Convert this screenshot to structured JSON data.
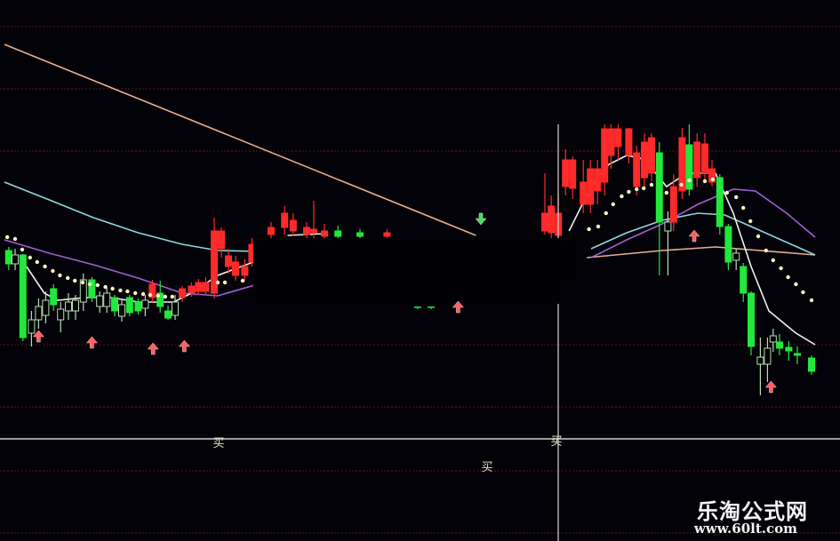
{
  "chart_data": {
    "type": "candlestick",
    "title": "",
    "xlabel": "",
    "ylabel": "",
    "grid": true,
    "colors": {
      "up": "#ff2a2a",
      "down": "#22e83c",
      "neutral": "#b8dcb8",
      "ma_long": "#e8b090",
      "ma_cyan": "#8fd8e0",
      "ma_purple": "#a060d0",
      "ma_white": "#f0f0f0",
      "dots": "#fff4c0",
      "arrow_buy": "#ff6060",
      "arrow_green": "#40e060"
    },
    "candle_fields": [
      "bar",
      "open",
      "close",
      "high",
      "low",
      "kind"
    ],
    "candles": [
      [
        0.6,
        109,
        101.5,
        111,
        98,
        "g"
      ],
      [
        1.5,
        101.5,
        106.5,
        110,
        98,
        "h"
      ],
      [
        2.6,
        106.5,
        60,
        107,
        58,
        "g"
      ],
      [
        3.8,
        62.5,
        70,
        75,
        55,
        "h"
      ],
      [
        4.8,
        70,
        77.5,
        82,
        65,
        "h"
      ],
      [
        5.8,
        72.5,
        81,
        86,
        68,
        "h"
      ],
      [
        6.9,
        87.5,
        78.5,
        90,
        75,
        "g"
      ],
      [
        7.9,
        70,
        76,
        80,
        63,
        "h"
      ],
      [
        9,
        75,
        80,
        85,
        70,
        "h"
      ],
      [
        10,
        75,
        81,
        84,
        70,
        "h"
      ],
      [
        11.1,
        80,
        92.5,
        96,
        75,
        "h"
      ],
      [
        12.3,
        92.5,
        82.5,
        94,
        80,
        "g"
      ],
      [
        13.4,
        77.5,
        83.5,
        86,
        74,
        "h"
      ],
      [
        14.4,
        77.5,
        85,
        88,
        74,
        "h"
      ],
      [
        15.5,
        82.5,
        75,
        84,
        72,
        "g"
      ],
      [
        16.5,
        72,
        78.5,
        82,
        69,
        "h"
      ],
      [
        17.6,
        82.5,
        74,
        84,
        72,
        "g"
      ],
      [
        18.8,
        80,
        75,
        82,
        73,
        "g"
      ],
      [
        19.8,
        76.5,
        81,
        84,
        72,
        "h"
      ],
      [
        20.8,
        82.5,
        90,
        92.5,
        80,
        "r"
      ],
      [
        21.9,
        85,
        77.5,
        92,
        74,
        "g"
      ],
      [
        23,
        75,
        71,
        78,
        70,
        "g"
      ],
      [
        24,
        72.5,
        80,
        84,
        70,
        "h"
      ],
      [
        25,
        82.5,
        87.5,
        89,
        80,
        "r"
      ],
      [
        26.3,
        85,
        89,
        91,
        83,
        "r"
      ],
      [
        27.3,
        86,
        91,
        93,
        84,
        "r"
      ],
      [
        28.3,
        86,
        91,
        94,
        84,
        "r"
      ],
      [
        29.5,
        85,
        120,
        127.5,
        82,
        "r"
      ],
      [
        30.5,
        110,
        120,
        122,
        105,
        "r"
      ],
      [
        31.5,
        100,
        106,
        110,
        96,
        "r"
      ],
      [
        32.5,
        95,
        102.5,
        106,
        92,
        "r"
      ],
      [
        33.8,
        95,
        100,
        104,
        92,
        "r"
      ],
      [
        34.8,
        102.5,
        112.5,
        116,
        100,
        "r"
      ],
      [
        37.5,
        118,
        122,
        125,
        116,
        "r"
      ],
      [
        39.4,
        122,
        130,
        134,
        118,
        "r"
      ],
      [
        40.6,
        120,
        126,
        130,
        117,
        "r"
      ],
      [
        42.5,
        118,
        122,
        125,
        116,
        "r"
      ],
      [
        43.5,
        119,
        121,
        137,
        116,
        "r"
      ],
      [
        45,
        117,
        120,
        124,
        116,
        "r"
      ],
      [
        46.9,
        120,
        117,
        123,
        116,
        "g"
      ],
      [
        50,
        119,
        117,
        121,
        116,
        "g"
      ],
      [
        53.8,
        117,
        119,
        121,
        116,
        "r"
      ],
      [
        58.1,
        79,
        77,
        80,
        76,
        "g"
      ],
      [
        60,
        79,
        77,
        80,
        76,
        "g"
      ],
      [
        76,
        120,
        130,
        152.5,
        118,
        "r"
      ],
      [
        76.9,
        119,
        134,
        140,
        116,
        "r"
      ],
      [
        77.9,
        117.5,
        130,
        140,
        115,
        "r"
      ],
      [
        78.9,
        145,
        160,
        166,
        140,
        "r"
      ],
      [
        79.9,
        144,
        160,
        162,
        138,
        "r"
      ],
      [
        81.4,
        135,
        147.5,
        160,
        130,
        "r"
      ],
      [
        82.4,
        135,
        155,
        160,
        130,
        "r"
      ],
      [
        83.4,
        142.5,
        155,
        160,
        135,
        "r"
      ],
      [
        84.4,
        147.5,
        177.5,
        180,
        140,
        "r"
      ],
      [
        85.3,
        162.5,
        177.5,
        180,
        155,
        "r"
      ],
      [
        86.3,
        167.5,
        177.5,
        180,
        160,
        "r"
      ],
      [
        87.8,
        162.5,
        177.5,
        178,
        158,
        "r"
      ],
      [
        88.9,
        145,
        164,
        168,
        140,
        "r"
      ],
      [
        90,
        150,
        170,
        175,
        145,
        "r"
      ],
      [
        91,
        152.5,
        172.5,
        175,
        148,
        "r"
      ],
      [
        92.1,
        164,
        125,
        170,
        95,
        "g"
      ],
      [
        93.3,
        120,
        125,
        131,
        95,
        "h"
      ],
      [
        94.1,
        125,
        145,
        152,
        120,
        "r"
      ],
      [
        95.3,
        142.5,
        172.5,
        178,
        138,
        "r"
      ],
      [
        96.3,
        168.5,
        143.5,
        180,
        140,
        "g"
      ],
      [
        97.4,
        150,
        170,
        175,
        145,
        "r"
      ],
      [
        98.5,
        152.5,
        169,
        175,
        148,
        "r"
      ],
      [
        99.5,
        147.5,
        155,
        160,
        145,
        "r"
      ],
      [
        100.6,
        150,
        122.5,
        152,
        118,
        "g"
      ],
      [
        101.8,
        122.5,
        102.5,
        124,
        98,
        "g"
      ],
      [
        102.9,
        103.5,
        107.5,
        110,
        98,
        "h"
      ],
      [
        103.9,
        100,
        85,
        102,
        80,
        "g"
      ],
      [
        105,
        85,
        55,
        86,
        50,
        "g"
      ],
      [
        106.3,
        45,
        49,
        60,
        27.5,
        "h"
      ],
      [
        107.3,
        45,
        54,
        60,
        35,
        "h"
      ],
      [
        108.1,
        57.5,
        61,
        65,
        52,
        "h"
      ],
      [
        109,
        57.5,
        54,
        62,
        50,
        "g"
      ],
      [
        110.3,
        54.5,
        52.5,
        58,
        47,
        "g"
      ],
      [
        111.5,
        51,
        50,
        55,
        45,
        "g"
      ],
      [
        113.5,
        48.5,
        41,
        50,
        39,
        "g"
      ]
    ],
    "lines": [
      {
        "key": "ma_long",
        "segments": [
          [
            [
              0,
              225
            ],
            [
              66.3,
              117.5
            ]
          ],
          [
            [
              81.9,
              105
            ],
            [
              92.5,
              109
            ],
            [
              100,
              111
            ],
            [
              114,
              106.5
            ]
          ]
        ]
      },
      {
        "key": "ma_cyan",
        "segments": [
          [
            [
              0,
              147.5
            ],
            [
              6.3,
              137.5
            ],
            [
              12.5,
              127.5
            ],
            [
              18.8,
              119
            ],
            [
              25,
              112.5
            ],
            [
              30,
              109
            ],
            [
              35.6,
              108.5
            ]
          ],
          [
            [
              82.5,
              110
            ],
            [
              87.5,
              119
            ],
            [
              92.5,
              126
            ],
            [
              97.5,
              130
            ],
            [
              101.3,
              129
            ],
            [
              105,
              122.5
            ],
            [
              114,
              106.5
            ]
          ]
        ]
      },
      {
        "key": "ma_purple",
        "segments": [
          [
            [
              0,
              115
            ],
            [
              6.3,
              107.5
            ],
            [
              12.5,
              101
            ],
            [
              18.8,
              93.5
            ],
            [
              25,
              85
            ],
            [
              30,
              83.5
            ],
            [
              35.6,
              90
            ]
          ],
          [
            [
              82.5,
              105
            ],
            [
              87.5,
              115
            ],
            [
              92.5,
              124
            ],
            [
              97.5,
              135
            ],
            [
              102.5,
              143.5
            ],
            [
              105.6,
              142.5
            ],
            [
              110,
              130
            ],
            [
              114,
              116.5
            ]
          ]
        ]
      },
      {
        "key": "ma_white",
        "segments": [
          [
            [
              3.1,
              100
            ],
            [
              5.6,
              85
            ],
            [
              7.5,
              81
            ],
            [
              11.3,
              82.5
            ],
            [
              15,
              82.5
            ],
            [
              18.8,
              80
            ],
            [
              23.8,
              80
            ],
            [
              26.3,
              85
            ],
            [
              30,
              95
            ],
            [
              35,
              102.5
            ]
          ],
          [
            [
              39.8,
              117.5
            ],
            [
              45,
              118.5
            ]
          ],
          [
            [
              79.4,
              120
            ],
            [
              82.5,
              145
            ],
            [
              85,
              157.5
            ],
            [
              87.5,
              162.5
            ],
            [
              89.4,
              161
            ],
            [
              90.6,
              157.5
            ],
            [
              93.1,
              145
            ],
            [
              95,
              150
            ],
            [
              96.9,
              152.5
            ],
            [
              100,
              152.5
            ],
            [
              102.5,
              130
            ],
            [
              105,
              100
            ],
            [
              107.5,
              75
            ],
            [
              111.3,
              62.5
            ],
            [
              114,
              56
            ]
          ]
        ]
      }
    ],
    "dots": {
      "bars": [
        0.4,
        1.5,
        2.5,
        3.6,
        4.6,
        5.7,
        6.8,
        7.8,
        8.9,
        9.9,
        11,
        12,
        13.1,
        14.2,
        15.2,
        16.3,
        17.3,
        18.4,
        19.5,
        20.5,
        21.6,
        22.6,
        23.6,
        30,
        31,
        33.5,
        82.2,
        83.5,
        84.6,
        85.6,
        86.8,
        87.8,
        88.9,
        89.9,
        91,
        93.1,
        95.2,
        96.3,
        98.5,
        99.6,
        101.6,
        102.9,
        103.9,
        104.9,
        106,
        107.1,
        108.1,
        109.2,
        110.2,
        111.3,
        112.3,
        113.5
      ],
      "prices": [
        116.5,
        115.5,
        109.5,
        105,
        102.5,
        100,
        97.5,
        95,
        93.5,
        92,
        91,
        90,
        89.5,
        88.5,
        87.5,
        86.5,
        86,
        85,
        84.5,
        84,
        83.5,
        83,
        83,
        91,
        91,
        92,
        121,
        122.5,
        130,
        135,
        139.5,
        142,
        143.5,
        144,
        146,
        141.5,
        146,
        148.5,
        148,
        149,
        141.5,
        139,
        133,
        125.5,
        117,
        109,
        103.5,
        99,
        94,
        90,
        85.5,
        81
      ]
    },
    "buy_arrows": [
      [
        4.8,
        61
      ],
      [
        12.3,
        57.5
      ],
      [
        20.9,
        54
      ],
      [
        25.3,
        55.5
      ],
      [
        63.8,
        77.5
      ],
      [
        97,
        117.5
      ],
      [
        107.8,
        32.5
      ]
    ],
    "green_arrows": [
      [
        67,
        125
      ]
    ],
    "signal_label": "买"
  },
  "watermark": {
    "name": "乐淘公式网",
    "url": "www.60lt.com"
  }
}
